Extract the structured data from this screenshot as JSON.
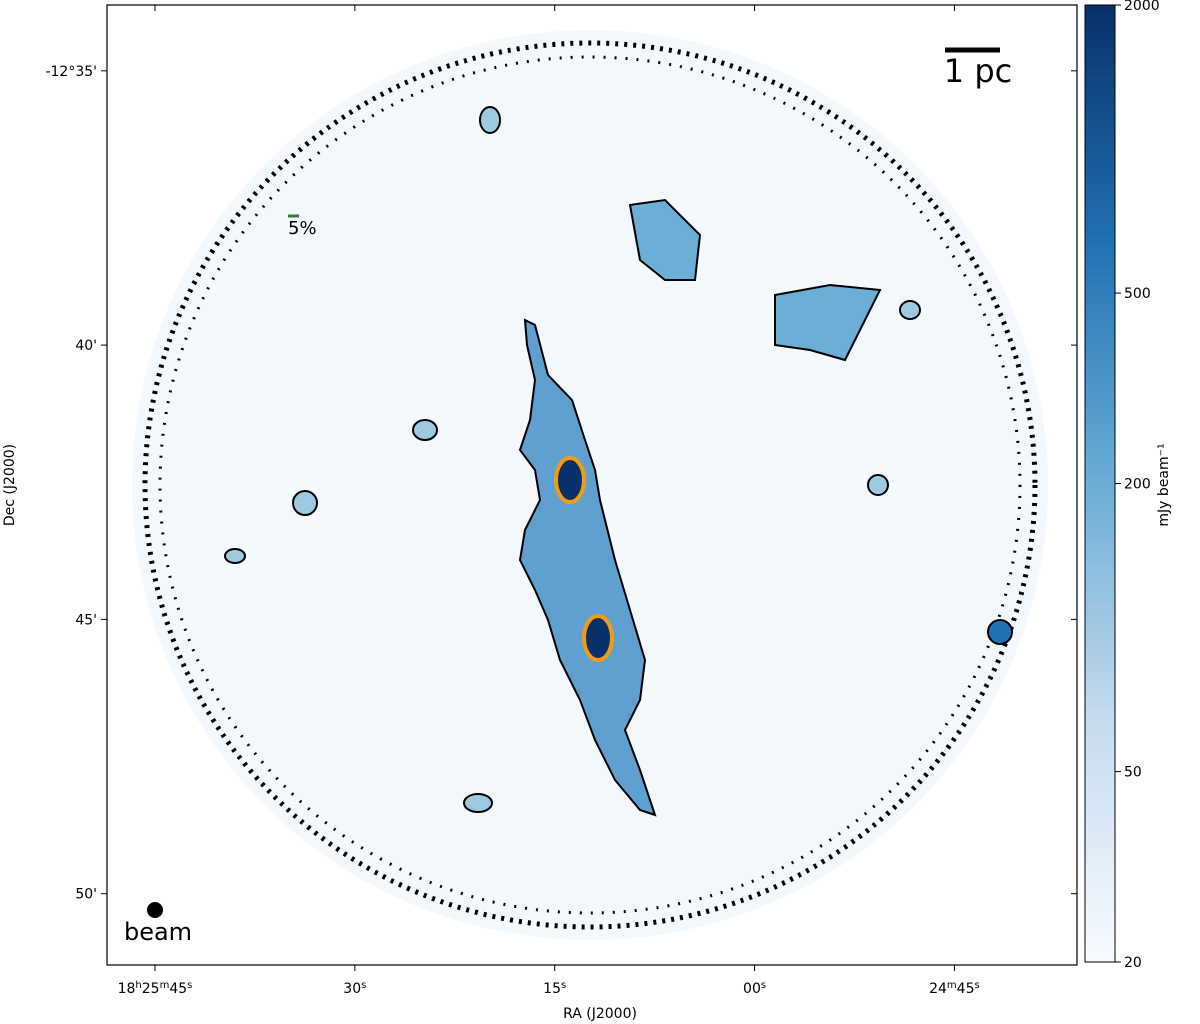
{
  "chart_data": {
    "type": "image",
    "xlabel": "RA (J2000)",
    "ylabel": "Dec (J2000)",
    "xlim": [
      66348.6,
      66275.8
    ],
    "xticks": [
      {
        "value": 66345,
        "label": "18h25m45s"
      },
      {
        "value": 66330,
        "label": "30s"
      },
      {
        "value": 66315,
        "label": "15s"
      },
      {
        "value": 66300,
        "label": "00s"
      },
      {
        "value": 66285,
        "label": "24m45s"
      }
    ],
    "ylim": [
      -771.3,
      -753.8
    ],
    "yticks": [
      {
        "value": -755,
        "label": "-12°35'"
      },
      {
        "value": -760,
        "label": "40'"
      },
      {
        "value": -765,
        "label": "45'"
      },
      {
        "value": -770,
        "label": "50'"
      }
    ],
    "colorbar": {
      "label": "mJy beam⁻¹",
      "lim": [
        20,
        2000
      ],
      "ticks": [
        20,
        50,
        200,
        500,
        2000
      ],
      "scale": "log",
      "cmap": [
        "#f7fbff",
        "#c6dbef",
        "#6baed6",
        "#2171b5",
        "#08306b"
      ]
    },
    "annotations": {
      "scale_bar": "1 pc",
      "vector_scale": "5%",
      "beam": "beam"
    }
  }
}
